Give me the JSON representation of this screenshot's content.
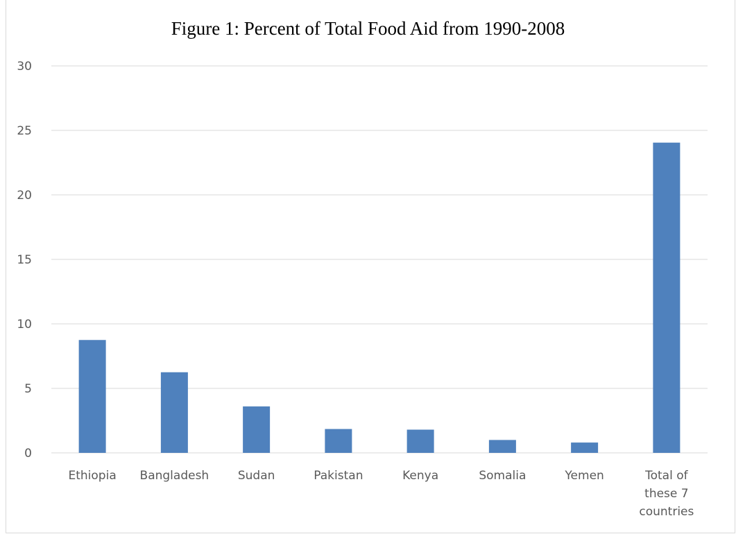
{
  "chart_data": {
    "type": "bar",
    "title": "Figure 1: Percent of Total Food Aid from 1990-2008",
    "xlabel": "",
    "ylabel": "",
    "categories": [
      "Ethiopia",
      "Bangladesh",
      "Sudan",
      "Pakistan",
      "Kenya",
      "Somalia",
      "Yemen",
      "Total of these 7 countries"
    ],
    "category_lines": [
      [
        "Ethiopia"
      ],
      [
        "Bangladesh"
      ],
      [
        "Sudan"
      ],
      [
        "Pakistan"
      ],
      [
        "Kenya"
      ],
      [
        "Somalia"
      ],
      [
        "Yemen"
      ],
      [
        "Total of",
        "these 7",
        "countries"
      ]
    ],
    "values": [
      8.75,
      6.25,
      3.6,
      1.85,
      1.8,
      1.0,
      0.8,
      24.05
    ],
    "ylim": [
      0,
      30
    ],
    "yticks": [
      0,
      5,
      10,
      15,
      20,
      25,
      30
    ],
    "grid": true,
    "legend": "none",
    "bar_color": "#4f81bd",
    "grid_color": "#d9d9d9",
    "tick_color": "#595959"
  }
}
